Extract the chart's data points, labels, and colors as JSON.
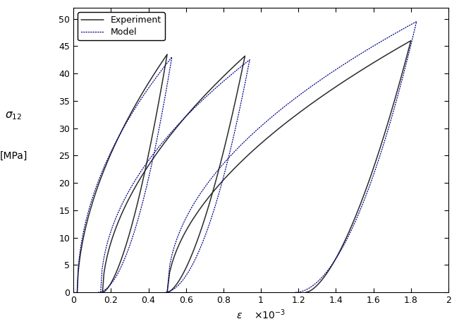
{
  "title": "",
  "xlabel_eps": "$\\varepsilon$",
  "xlabel_scale": "$\\times 10^{-3}$",
  "ylabel_line1": "$\\sigma_{12}$",
  "ylabel_line2": "[MPa]",
  "xlim": [
    0,
    2.0
  ],
  "ylim": [
    0,
    52
  ],
  "xticks": [
    0,
    0.2,
    0.4,
    0.6,
    0.8,
    1.0,
    1.2,
    1.4,
    1.6,
    1.8,
    2.0
  ],
  "yticks": [
    0,
    5,
    10,
    15,
    20,
    25,
    30,
    35,
    40,
    45,
    50
  ],
  "exp_color": "#2a2a2a",
  "model_color": "#00008B",
  "background_color": "#ffffff",
  "legend_loc": "upper left",
  "lw_exp": 1.1,
  "lw_model": 0.9
}
